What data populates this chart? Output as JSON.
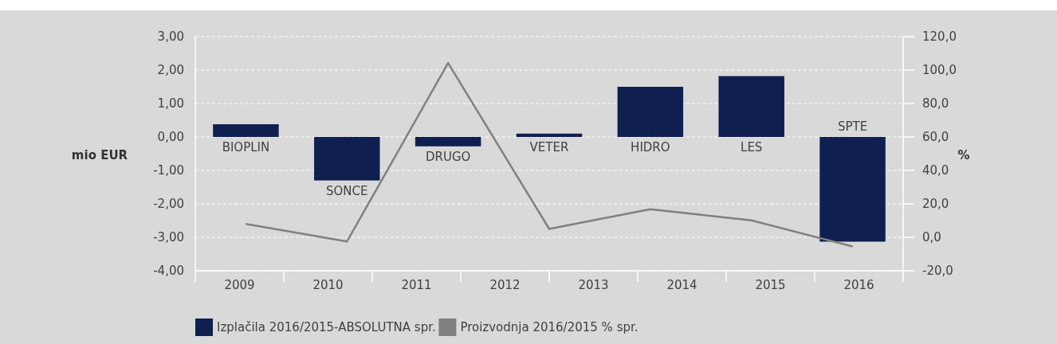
{
  "chart_data": {
    "type": "bar",
    "categories": [
      "BIOPLIN",
      "SONCE",
      "DRUGO",
      "VETER",
      "HIDRO",
      "LES",
      "SPTE"
    ],
    "series": [
      {
        "name": "Izplačila 2016/2015-ABSOLUTNA spr.",
        "color": "#0f1f4f",
        "values": [
          0.38,
          -1.3,
          -0.28,
          0.1,
          1.5,
          1.82,
          -3.13
        ]
      },
      {
        "name": "Proizvodnja 2016/2015 % spr.",
        "type": "line",
        "axis": "y2",
        "color": "#808080",
        "values": [
          8.0,
          -2.5,
          104.2,
          5.0,
          16.8,
          10.1,
          -5.5
        ]
      }
    ],
    "ylabel": "mio EUR",
    "y2label": "%",
    "ylim": [
      -4,
      3
    ],
    "yticks": [
      {
        "value": 3,
        "label": "3,00"
      },
      {
        "value": 2,
        "label": "2,00"
      },
      {
        "value": 1,
        "label": "1,00"
      },
      {
        "value": 0,
        "label": "0,00"
      },
      {
        "value": -1,
        "label": "-1,00"
      },
      {
        "value": -2,
        "label": "-2,00"
      },
      {
        "value": -3,
        "label": "-3,00"
      },
      {
        "value": -4,
        "label": "-4,00"
      }
    ],
    "y2lim": [
      -20,
      120
    ],
    "y2ticks": [
      {
        "value": 120,
        "label": "120,0"
      },
      {
        "value": 100,
        "label": "100,0"
      },
      {
        "value": 80,
        "label": "80,0"
      },
      {
        "value": 60,
        "label": "60,0"
      },
      {
        "value": 40,
        "label": "40,0"
      },
      {
        "value": 20,
        "label": "20,0"
      },
      {
        "value": 0,
        "label": "0,0"
      },
      {
        "value": -20,
        "label": "-20,0"
      }
    ],
    "x2lim": [
      2008.5,
      2016.5
    ],
    "x2ticks": [
      2009,
      2010,
      2011,
      2012,
      2013,
      2014,
      2015,
      2016
    ],
    "grid": "y",
    "legend": "bottom",
    "marker": "none"
  }
}
